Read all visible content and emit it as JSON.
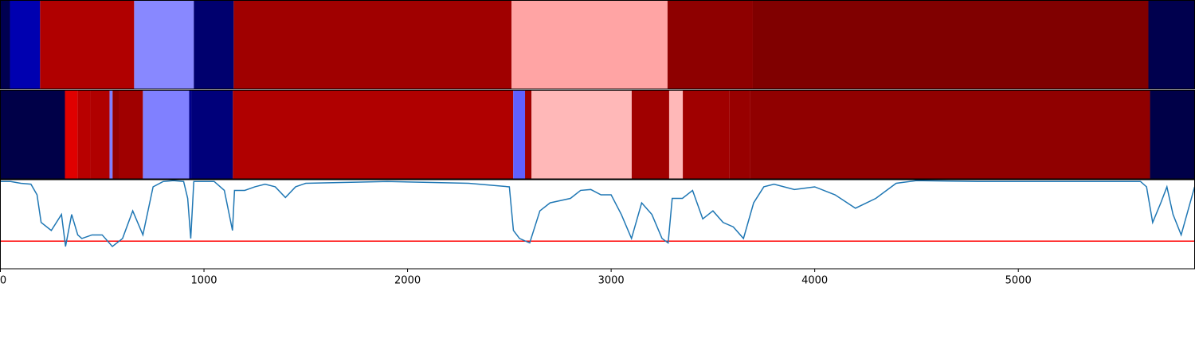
{
  "chart_data": [
    {
      "type": "band",
      "bins": [
        0,
        47,
        195,
        657,
        950,
        1146,
        2511,
        3277,
        3696,
        5639,
        5866
      ],
      "colors": [
        "#000050",
        "#0000b0",
        "#b00000",
        "#8888ff",
        "#00006e",
        "#a00000",
        "#ffa4a4",
        "#8e0000",
        "#800000",
        "#00004e"
      ],
      "xlim": [
        0,
        5866
      ]
    },
    {
      "type": "band",
      "bins": [
        0,
        317,
        379,
        442,
        536,
        551,
        583,
        700,
        927,
        939,
        1142,
        2519,
        2577,
        2609,
        3101,
        3285,
        3352,
        3582,
        3684,
        5647,
        5866
      ],
      "colors": [
        "#000048",
        "#e00000",
        "#b80000",
        "#b00000",
        "#8080ff",
        "#900000",
        "#a00000",
        "#8080ff",
        "#00008a",
        "#00007a",
        "#b00000",
        "#6060ff",
        "#a00000",
        "#ffb8b8",
        "#a00000",
        "#ffb8b8",
        "#a00000",
        "#980000",
        "#900000",
        "#000048"
      ],
      "xlim": [
        0,
        5866
      ]
    },
    {
      "type": "line",
      "x": [
        0,
        50,
        100,
        150,
        180,
        200,
        250,
        300,
        320,
        350,
        380,
        400,
        450,
        500,
        550,
        600,
        650,
        700,
        750,
        800,
        850,
        900,
        920,
        935,
        950,
        1000,
        1050,
        1100,
        1140,
        1150,
        1200,
        1250,
        1300,
        1350,
        1400,
        1450,
        1500,
        1700,
        1900,
        2100,
        2300,
        2500,
        2520,
        2550,
        2600,
        2650,
        2700,
        2800,
        2850,
        2900,
        2950,
        3000,
        3050,
        3100,
        3150,
        3200,
        3250,
        3280,
        3300,
        3350,
        3400,
        3450,
        3500,
        3550,
        3600,
        3650,
        3700,
        3750,
        3800,
        3900,
        4000,
        4100,
        4200,
        4300,
        4400,
        4500,
        4800,
        5100,
        5400,
        5600,
        5630,
        5660,
        5700,
        5730,
        5760,
        5800,
        5866
      ],
      "series": [
        {
          "color": "#1f77b4",
          "values": [
            0.98,
            0.98,
            0.96,
            0.95,
            0.83,
            0.52,
            0.43,
            0.61,
            0.25,
            0.61,
            0.38,
            0.34,
            0.38,
            0.38,
            0.25,
            0.34,
            0.65,
            0.38,
            0.92,
            0.98,
            0.99,
            0.98,
            0.79,
            0.34,
            0.98,
            0.98,
            0.98,
            0.88,
            0.43,
            0.88,
            0.88,
            0.92,
            0.95,
            0.92,
            0.8,
            0.92,
            0.96,
            0.97,
            0.98,
            0.97,
            0.96,
            0.92,
            0.43,
            0.34,
            0.29,
            0.65,
            0.74,
            0.79,
            0.88,
            0.89,
            0.83,
            0.83,
            0.61,
            0.34,
            0.74,
            0.61,
            0.34,
            0.29,
            0.79,
            0.79,
            0.88,
            0.56,
            0.65,
            0.52,
            0.47,
            0.34,
            0.74,
            0.92,
            0.95,
            0.89,
            0.92,
            0.83,
            0.68,
            0.79,
            0.96,
            0.99,
            0.98,
            0.98,
            0.98,
            0.98,
            0.92,
            0.52,
            0.74,
            0.92,
            0.61,
            0.38,
            0.92
          ]
        }
      ],
      "hline": {
        "value": 0.31,
        "color": "#ff0000"
      },
      "xlim": [
        0,
        5866
      ],
      "ylim": [
        0,
        1
      ],
      "xticks": [
        0,
        1000,
        2000,
        3000,
        4000,
        5000
      ]
    }
  ]
}
